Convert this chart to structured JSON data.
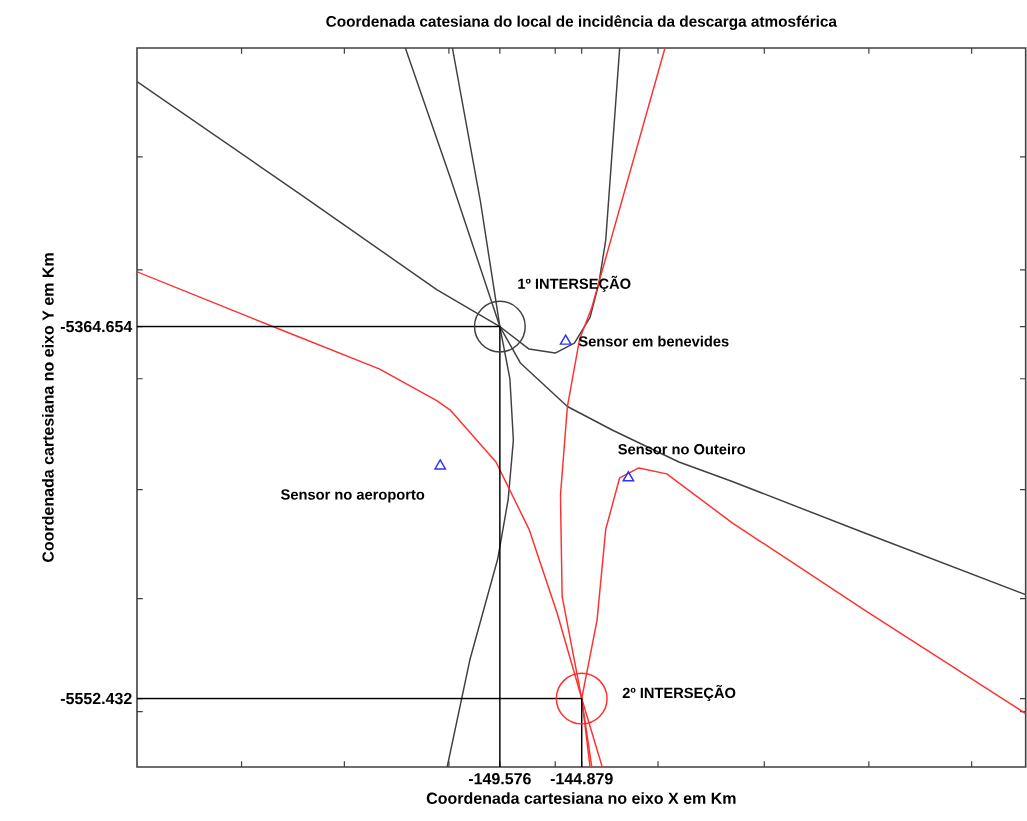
{
  "chart_data": {
    "type": "line",
    "title": "Coordenada catesiana  do local de incidência da descarga atmosférica",
    "xlabel": "Coordenada cartesiana no eixo X em Km",
    "ylabel": "Coordenada cartesiana no eixo Y em  Km",
    "xlim": [
      -170.4,
      -119.4
    ],
    "ylim": [
      -5587,
      -5224
    ],
    "xticks": [
      {
        "value": -164.4,
        "label": null
      },
      {
        "value": -158.5,
        "label": null
      },
      {
        "value": -152.5,
        "label": null
      },
      -149.576,
      {
        "value": -146.4,
        "label": null
      },
      -144.879,
      {
        "value": -140.5,
        "label": null
      },
      {
        "value": -134.4,
        "label": null
      },
      {
        "value": -128.4,
        "label": null
      },
      {
        "value": -122.5,
        "label": null
      }
    ],
    "yticks": [
      {
        "value": -5559,
        "label": null
      },
      -5552.432,
      {
        "value": -5502,
        "label": null
      },
      {
        "value": -5447,
        "label": null
      },
      {
        "value": -5391,
        "label": null
      },
      -5364.654,
      {
        "value": -5336,
        "label": null
      },
      {
        "value": -5279,
        "label": null
      }
    ],
    "line_style": "solid",
    "series": [
      {
        "color": "#404040",
        "x": [
          -170.4,
          -161.0,
          -153.2,
          -149.576,
          -147.9,
          -146.4,
          -145.3,
          -144.4,
          -143.9,
          -143.5,
          -142.7
        ],
        "values": [
          -5241,
          -5298,
          -5346,
          -5364.654,
          -5376,
          -5378,
          -5373,
          -5360,
          -5343,
          -5321,
          -5224
        ]
      },
      {
        "color": "#404040",
        "x": [
          -152.3,
          -150.7,
          -149.576,
          -148.4,
          -145.7,
          -143.1,
          -139.3,
          -136.2,
          -128.6,
          -119.4
        ],
        "values": [
          -5224,
          -5301,
          -5364.654,
          -5383,
          -5405,
          -5417,
          -5433,
          -5443,
          -5469,
          -5500
        ]
      },
      {
        "color": "#404040",
        "x": [
          -155.0,
          -152.4,
          -149.576,
          -149.0,
          -148.8,
          -149.1,
          -149.7,
          -151.3,
          -152.6
        ],
        "values": [
          -5224,
          -5290,
          -5364.654,
          -5391,
          -5422,
          -5452,
          -5482,
          -5533,
          -5587
        ]
      },
      {
        "color": "#ff3030",
        "x": [
          -170.4,
          -162.5,
          -156.5,
          -153.2,
          -152.4,
          -149.8,
          -147.9,
          -146.3,
          -144.879,
          -143.7
        ],
        "values": [
          -5337,
          -5365,
          -5386,
          -5402,
          -5407,
          -5433,
          -5467,
          -5509,
          -5552.432,
          -5587
        ]
      },
      {
        "color": "#ff3030",
        "x": [
          -140.1,
          -144.3,
          -145.0,
          -145.7,
          -146.1,
          -146.0,
          -144.879,
          -144.3
        ],
        "values": [
          -5224,
          -5355,
          -5371,
          -5405,
          -5450,
          -5501,
          -5552.432,
          -5587
        ]
      },
      {
        "color": "#ff3030",
        "x": [
          -119.4,
          -128.6,
          -136.2,
          -140.0,
          -141.6,
          -142.7,
          -143.5,
          -144.0,
          -144.879,
          -144.4
        ],
        "values": [
          -5560,
          -5508,
          -5464,
          -5439,
          -5436,
          -5441,
          -5467,
          -5513,
          -5552.432,
          -5587
        ]
      },
      {
        "color": "#000000",
        "x": [
          -170.4,
          -149.576,
          -149.576
        ],
        "values": [
          -5364.654,
          -5364.654,
          -5587
        ]
      },
      {
        "color": "#000000",
        "x": [
          -170.4,
          -144.879,
          -144.879
        ],
        "values": [
          -5552.432,
          -5552.432,
          -5587
        ]
      },
      {
        "type": "scatter",
        "marker": "circle",
        "color": "#404040",
        "x": [
          -149.576
        ],
        "values": [
          -5364.654
        ]
      },
      {
        "type": "scatter",
        "marker": "circle",
        "color": "#ff3030",
        "x": [
          -144.879
        ],
        "values": [
          -5552.432
        ]
      },
      {
        "type": "scatter",
        "marker": "triangle",
        "color": "#3030ff",
        "name": "Sensor em benevides",
        "x": [
          -145.8
        ],
        "values": [
          -5372
        ]
      },
      {
        "type": "scatter",
        "marker": "triangle",
        "color": "#3030ff",
        "name": "Sensor no aeroporto",
        "x": [
          -153.0
        ],
        "values": [
          -5435
        ]
      },
      {
        "type": "scatter",
        "marker": "triangle",
        "color": "#3030ff",
        "name": "Sensor no Outeiro",
        "x": [
          -142.2
        ],
        "values": [
          -5441
        ]
      }
    ],
    "annotations": [
      "1º INTERSEÇÃO",
      "2º INTERSEÇÃO"
    ]
  }
}
